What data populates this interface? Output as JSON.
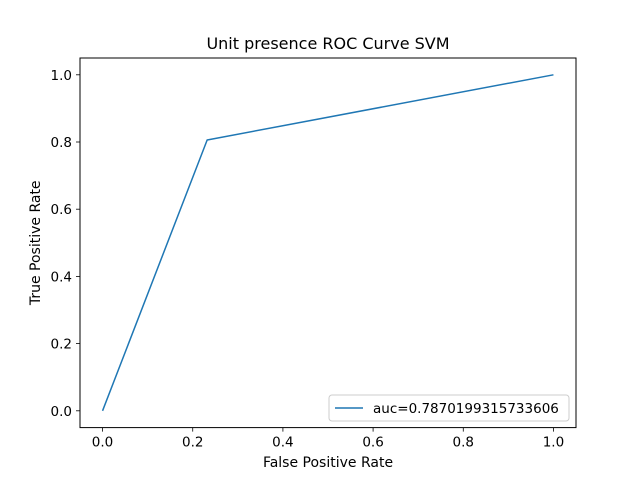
{
  "chart_data": {
    "type": "line",
    "title": "Unit presence ROC Curve SVM",
    "xlabel": "False Positive Rate",
    "ylabel": "True Positive Rate",
    "xlim": [
      -0.05,
      1.05
    ],
    "ylim": [
      -0.05,
      1.05
    ],
    "xticks": [
      0.0,
      0.2,
      0.4,
      0.6,
      0.8,
      1.0
    ],
    "yticks": [
      0.0,
      0.2,
      0.4,
      0.6,
      0.8,
      1.0
    ],
    "xtick_labels": [
      "0.0",
      "0.2",
      "0.4",
      "0.6",
      "0.8",
      "1.0"
    ],
    "ytick_labels": [
      "0.0",
      "0.2",
      "0.4",
      "0.6",
      "0.8",
      "1.0"
    ],
    "grid": false,
    "legend_position": "lower-right",
    "series": [
      {
        "name": "auc=0.7870199315733606",
        "color": "#1f77b4",
        "x": [
          0.0,
          0.232,
          1.0
        ],
        "y": [
          0.0,
          0.806,
          1.0
        ]
      }
    ]
  }
}
